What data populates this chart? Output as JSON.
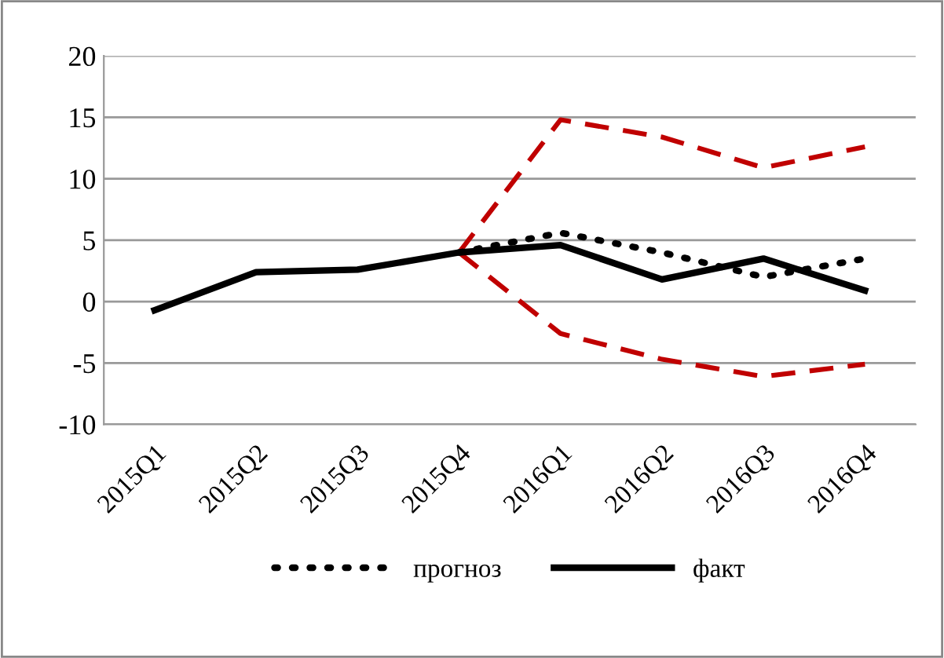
{
  "chart_data": {
    "type": "line",
    "categories": [
      "2015Q1",
      "2015Q2",
      "2015Q3",
      "2015Q4",
      "2016Q1",
      "2016Q2",
      "2016Q3",
      "2016Q4"
    ],
    "series": [
      {
        "color": "#c00000",
        "line_style": "dashed",
        "values": [
          null,
          null,
          null,
          4.0,
          14.8,
          13.4,
          10.9,
          12.6
        ]
      },
      {
        "color": "#c00000",
        "line_style": "dashed",
        "values": [
          null,
          null,
          null,
          4.0,
          -2.6,
          -4.7,
          -6.1,
          -5.1
        ]
      },
      {
        "name": "прогноз",
        "color": "#000000",
        "line_style": "dotted",
        "values": [
          null,
          null,
          null,
          4.0,
          5.6,
          4.0,
          2.0,
          3.5
        ]
      },
      {
        "name": "факт",
        "color": "#000000",
        "line_style": "solid",
        "values": [
          -0.7,
          2.4,
          2.6,
          4.0,
          4.6,
          1.8,
          3.5,
          0.9
        ]
      }
    ],
    "ylim": [
      -10,
      20
    ],
    "yticks": [
      -10,
      -5,
      0,
      5,
      10,
      15,
      20
    ],
    "grid": "y",
    "legend": "bottom",
    "marker": "none"
  }
}
